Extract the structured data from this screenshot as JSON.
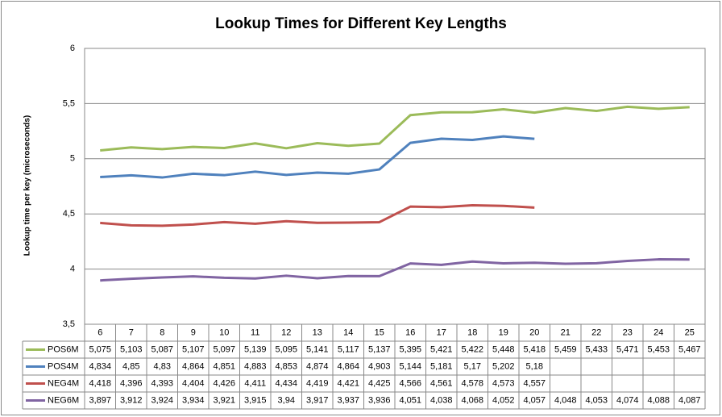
{
  "chart_data": {
    "type": "line",
    "title": "Lookup Times for Different Key Lengths",
    "y_label": "Lookup time per key (microseconds)",
    "categories": [
      6,
      7,
      8,
      9,
      10,
      11,
      12,
      13,
      14,
      15,
      16,
      17,
      18,
      19,
      20,
      21,
      22,
      23,
      24,
      25
    ],
    "series": [
      {
        "name": "POS6M",
        "color": "#9bbb59",
        "values": [
          5.075,
          5.103,
          5.087,
          5.107,
          5.097,
          5.139,
          5.095,
          5.141,
          5.117,
          5.137,
          5.395,
          5.421,
          5.422,
          5.448,
          5.418,
          5.459,
          5.433,
          5.471,
          5.453,
          5.467
        ],
        "value_labels": [
          "5,075",
          "5,103",
          "5,087",
          "5,107",
          "5,097",
          "5,139",
          "5,095",
          "5,141",
          "5,117",
          "5,137",
          "5,395",
          "5,421",
          "5,422",
          "5,448",
          "5,418",
          "5,459",
          "5,433",
          "5,471",
          "5,453",
          "5,467"
        ]
      },
      {
        "name": "POS4M",
        "color": "#4f81bd",
        "values": [
          4.834,
          4.85,
          4.83,
          4.864,
          4.851,
          4.883,
          4.853,
          4.874,
          4.864,
          4.903,
          5.144,
          5.181,
          5.17,
          5.202,
          5.18,
          null,
          null,
          null,
          null,
          null
        ],
        "value_labels": [
          "4,834",
          "4,85",
          "4,83",
          "4,864",
          "4,851",
          "4,883",
          "4,853",
          "4,874",
          "4,864",
          "4,903",
          "5,144",
          "5,181",
          "5,17",
          "5,202",
          "5,18",
          null,
          null,
          null,
          null,
          null
        ]
      },
      {
        "name": "NEG4M",
        "color": "#c0504d",
        "values": [
          4.418,
          4.396,
          4.393,
          4.404,
          4.426,
          4.411,
          4.434,
          4.419,
          4.421,
          4.425,
          4.566,
          4.561,
          4.578,
          4.573,
          4.557,
          null,
          null,
          null,
          null,
          null
        ],
        "value_labels": [
          "4,418",
          "4,396",
          "4,393",
          "4,404",
          "4,426",
          "4,411",
          "4,434",
          "4,419",
          "4,421",
          "4,425",
          "4,566",
          "4,561",
          "4,578",
          "4,573",
          "4,557",
          null,
          null,
          null,
          null,
          null
        ]
      },
      {
        "name": "NEG6M",
        "color": "#8064a2",
        "values": [
          3.897,
          3.912,
          3.924,
          3.934,
          3.921,
          3.915,
          3.94,
          3.917,
          3.937,
          3.936,
          4.051,
          4.038,
          4.068,
          4.052,
          4.057,
          4.048,
          4.053,
          4.074,
          4.088,
          4.087
        ],
        "value_labels": [
          "3,897",
          "3,912",
          "3,924",
          "3,934",
          "3,921",
          "3,915",
          "3,94",
          "3,917",
          "3,937",
          "3,936",
          "4,051",
          "4,038",
          "4,068",
          "4,052",
          "4,057",
          "4,048",
          "4,053",
          "4,074",
          "4,088",
          "4,087"
        ]
      }
    ],
    "ylim": [
      3.5,
      6
    ],
    "yticks": [
      {
        "value": 3.5,
        "label": "3,5"
      },
      4,
      {
        "value": 4.5,
        "label": "4,5"
      },
      5,
      {
        "value": 5.5,
        "label": "5,5"
      },
      6
    ],
    "grid": true
  }
}
